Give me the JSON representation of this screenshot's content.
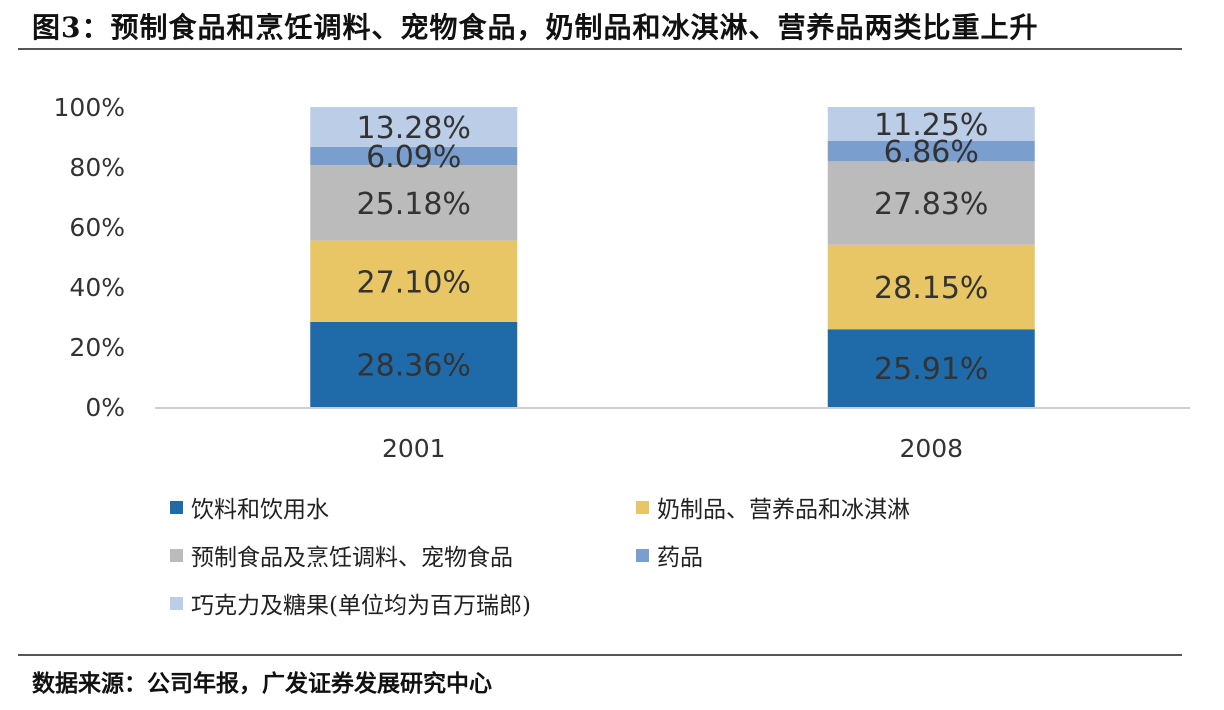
{
  "figure": {
    "title": "图3：预制食品和烹饪调料、宠物食品，奶制品和冰淇淋、营养品两类比重上升",
    "source": "数据来源：公司年报，广发证券发展研究中心"
  },
  "chart_data": {
    "type": "bar",
    "stacked": true,
    "categories": [
      "2001",
      "2008"
    ],
    "ylim": [
      0,
      100
    ],
    "yticks": [
      "0%",
      "20%",
      "40%",
      "60%",
      "80%",
      "100%"
    ],
    "grid": false,
    "legend_position": "bottom",
    "series": [
      {
        "name": "饮料和饮用水",
        "values": [
          28.36,
          25.91
        ],
        "labels": [
          "28.36%",
          "25.91%"
        ],
        "color": "#1F6AA8"
      },
      {
        "name": "奶制品、营养品和冰淇淋",
        "values": [
          27.1,
          28.15
        ],
        "labels": [
          "27.10%",
          "28.15%"
        ],
        "color": "#E8C666"
      },
      {
        "name": "预制食品及烹饪调料、宠物食品",
        "values": [
          25.18,
          27.83
        ],
        "labels": [
          "25.18%",
          "27.83%"
        ],
        "color": "#BBBBBB"
      },
      {
        "name": "药品",
        "values": [
          6.09,
          6.86
        ],
        "labels": [
          "6.09%",
          "6.86%"
        ],
        "color": "#7A9FCF"
      },
      {
        "name": "巧克力及糖果(单位均为百万瑞郎)",
        "values": [
          13.28,
          11.25
        ],
        "labels": [
          "13.28%",
          "11.25%"
        ],
        "color": "#BCCDE8"
      }
    ]
  }
}
